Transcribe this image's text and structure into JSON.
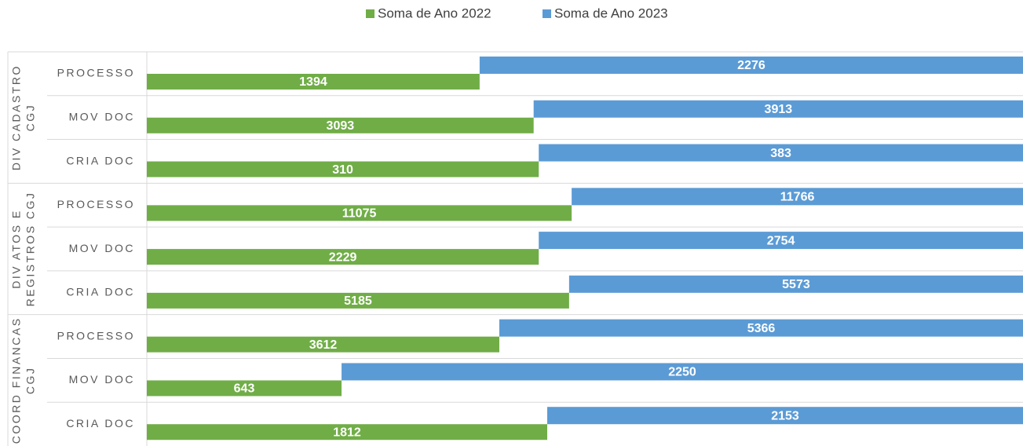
{
  "chart_data": {
    "type": "bar",
    "stacking": "percent",
    "groups": [
      [
        "DIV CADASTRO",
        "CGJ"
      ],
      [
        "DIV ATOS E",
        "REGISTROS CGJ"
      ],
      [
        "COORD FINANCAS",
        "CGJ"
      ]
    ],
    "categories": [
      "PROCESSO",
      "MOV DOC",
      "CRIA DOC",
      "PROCESSO",
      "MOV DOC",
      "CRIA DOC",
      "PROCESSO",
      "MOV DOC",
      "CRIA DOC"
    ],
    "series": [
      {
        "name": "Soma de Ano 2022",
        "color": "#70ad47",
        "values": [
          1394,
          3093,
          310,
          11075,
          2229,
          5185,
          3612,
          643,
          1812
        ]
      },
      {
        "name": "Soma de Ano 2023",
        "color": "#5b9bd5",
        "values": [
          2276,
          3913,
          383,
          11766,
          2754,
          5573,
          5366,
          2250,
          2153
        ]
      }
    ],
    "legend": "top"
  }
}
